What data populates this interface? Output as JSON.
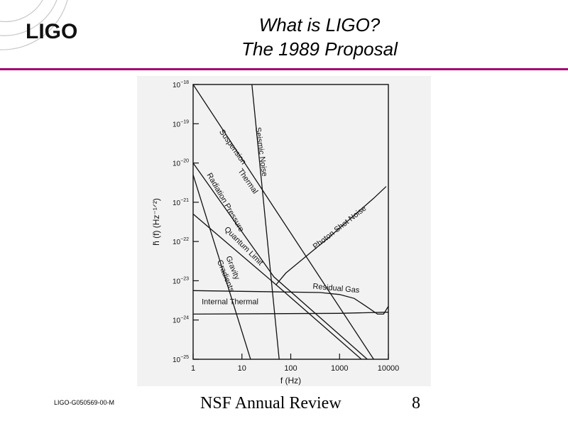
{
  "header": {
    "logo_text": "LIGO",
    "title_line1": "What is LIGO?",
    "title_line2": "The 1989 Proposal"
  },
  "footer": {
    "doc_id": "LIGO-G050569-00-M",
    "title": "NSF Annual Review",
    "page_number": "8"
  },
  "colors": {
    "accent_rule": "#a3076f",
    "panel_bg": "#f2f2f2",
    "ink": "#111111"
  },
  "chart_data": {
    "type": "line",
    "xscale": "log",
    "yscale": "log",
    "xlabel": "f  (Hz)",
    "ylabel": "h̃ (f)  (Hz⁻¹ᐟ²)",
    "xlim": [
      1,
      10000
    ],
    "ylim_exponents": [
      -25,
      -18
    ],
    "x_ticks": [
      {
        "value": 1,
        "label": "1"
      },
      {
        "value": 10,
        "label": "10"
      },
      {
        "value": 100,
        "label": "100"
      },
      {
        "value": 1000,
        "label": "1000"
      },
      {
        "value": 10000,
        "label": "10000"
      }
    ],
    "y_ticks": [
      {
        "exp": -18,
        "base": "10",
        "sup": "−18"
      },
      {
        "exp": -19,
        "base": "10",
        "sup": "−19"
      },
      {
        "exp": -20,
        "base": "10",
        "sup": "−20"
      },
      {
        "exp": -21,
        "base": "10",
        "sup": "−21"
      },
      {
        "exp": -22,
        "base": "10",
        "sup": "−22"
      },
      {
        "exp": -23,
        "base": "10",
        "sup": "−23"
      },
      {
        "exp": -24,
        "base": "10",
        "sup": "−24"
      },
      {
        "exp": -25,
        "base": "10",
        "sup": "−25"
      }
    ],
    "series": [
      {
        "name": "Seismic Noise",
        "points": [
          [
            16,
            -18
          ],
          [
            58,
            -25
          ]
        ]
      },
      {
        "name": "Suspension Thermal",
        "points": [
          [
            1,
            -18
          ],
          [
            5000,
            -25
          ]
        ]
      },
      {
        "name": "Radiation Pressure",
        "points": [
          [
            1,
            -20
          ],
          [
            45,
            -22.9
          ],
          [
            3700,
            -25
          ]
        ]
      },
      {
        "name": "Quantum Limit",
        "points": [
          [
            1,
            -21.3
          ],
          [
            50,
            -23.1
          ],
          [
            2800,
            -25
          ]
        ]
      },
      {
        "name": "Gravity Gradients",
        "points": [
          [
            1,
            -20.3
          ],
          [
            15,
            -25
          ]
        ]
      },
      {
        "name": "Photon Shot Noise",
        "points": [
          [
            50,
            -23.1
          ],
          [
            80,
            -22.8
          ],
          [
            600,
            -21.9
          ],
          [
            5000,
            -20.9
          ],
          [
            9000,
            -20.6
          ]
        ]
      },
      {
        "name": "Residual Gas",
        "points": [
          [
            1,
            -23.25
          ],
          [
            400,
            -23.3
          ],
          [
            1000,
            -23.35
          ],
          [
            2000,
            -23.45
          ],
          [
            3500,
            -23.65
          ],
          [
            6000,
            -23.85
          ],
          [
            8000,
            -23.85
          ],
          [
            10000,
            -23.65
          ]
        ]
      },
      {
        "name": "Internal Thermal",
        "points": [
          [
            1,
            -23.85
          ],
          [
            1000,
            -23.83
          ],
          [
            10000,
            -23.8
          ]
        ]
      }
    ],
    "annotations": [
      {
        "text": "Seismic Noise",
        "x": 19,
        "y": -19.1,
        "angle": 82
      },
      {
        "text": "Suspension",
        "x": 3.4,
        "y": -19.2,
        "angle": 55
      },
      {
        "text": "Thermal",
        "x": 8.2,
        "y": -20.2,
        "angle": 55
      },
      {
        "text": "Radiation Pressure",
        "x": 1.9,
        "y": -20.3,
        "angle": 60
      },
      {
        "text": "Quantum Limit",
        "x": 4.3,
        "y": -21.7,
        "angle": 45
      },
      {
        "text": "Gravity",
        "x": 4.7,
        "y": -22.4,
        "angle": 68
      },
      {
        "text": "Gradients",
        "x": 3.1,
        "y": -22.5,
        "angle": 68
      },
      {
        "text": "Photon Shot Noise",
        "x": 320,
        "y": -22.2,
        "angle": -38
      },
      {
        "text": "Residual Gas",
        "x": 280,
        "y": -23.2,
        "angle": 5
      },
      {
        "text": "Internal  Thermal",
        "x": 1.5,
        "y": -23.6,
        "angle": 0
      }
    ]
  }
}
